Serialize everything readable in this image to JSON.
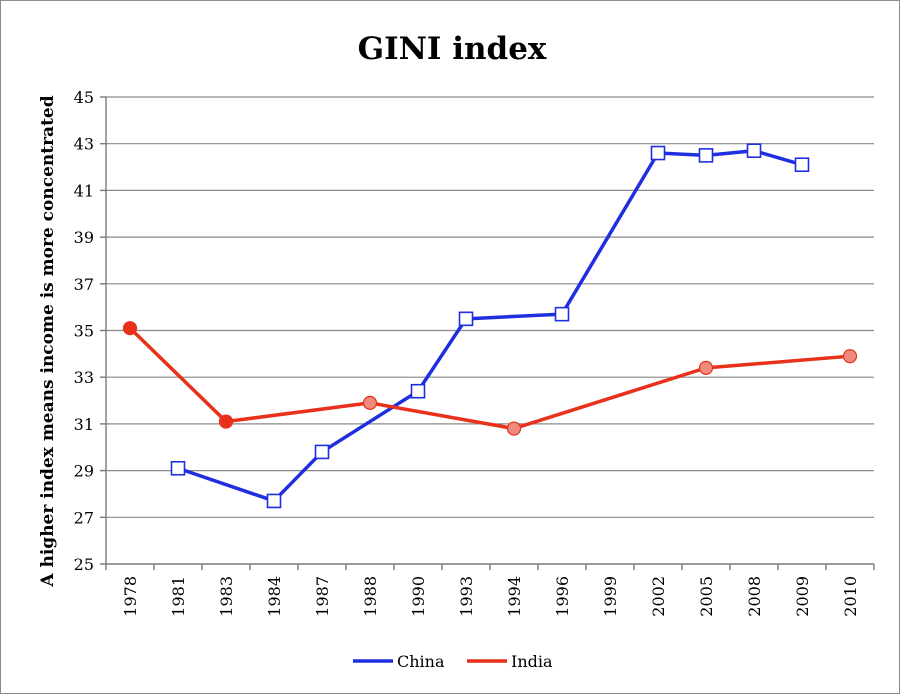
{
  "chart_data": {
    "type": "line",
    "title": "GINI index",
    "xlabel": "",
    "ylabel": "A higher index means income is more concentrated",
    "categories": [
      "1978",
      "1981",
      "1983",
      "1984",
      "1987",
      "1988",
      "1990",
      "1993",
      "1994",
      "1996",
      "1999",
      "2002",
      "2005",
      "2008",
      "2009",
      "2010"
    ],
    "ylim": [
      25,
      45
    ],
    "yticks": [
      25,
      27,
      29,
      31,
      33,
      35,
      37,
      39,
      41,
      43,
      45
    ],
    "grid": true,
    "legend_position": "bottom",
    "series": [
      {
        "name": "China",
        "color": "#1f2fe0",
        "marker": "open-square",
        "values": [
          null,
          29.1,
          null,
          27.7,
          29.8,
          null,
          32.4,
          35.5,
          null,
          35.7,
          null,
          42.6,
          42.5,
          42.7,
          42.1,
          null
        ]
      },
      {
        "name": "India",
        "color": "#e8301a",
        "marker": "filled-circle",
        "values": [
          35.1,
          null,
          31.1,
          null,
          null,
          31.9,
          null,
          null,
          30.8,
          null,
          null,
          null,
          33.4,
          null,
          null,
          33.9
        ]
      }
    ]
  }
}
